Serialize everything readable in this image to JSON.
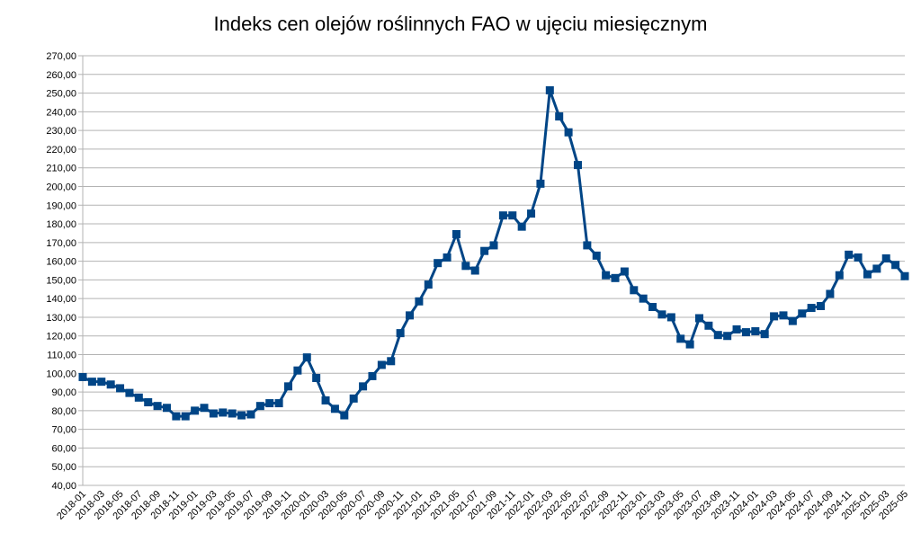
{
  "chart_data": {
    "type": "line",
    "title": "Indeks cen olejów roślinnych FAO w ujęciu miesięcznym",
    "categories": [
      "2018-01",
      null,
      "2018-03",
      null,
      "2018-05",
      null,
      "2018-07",
      null,
      "2018-09",
      null,
      "2018-11",
      null,
      "2019-01",
      null,
      "2019-03",
      null,
      "2019-05",
      null,
      "2019-07",
      null,
      "2019-09",
      null,
      "2019-11",
      null,
      "2020-01",
      null,
      "2020-03",
      null,
      "2020-05",
      null,
      "2020-07",
      null,
      "2020-09",
      null,
      "2020-11",
      null,
      "2021-01",
      null,
      "2021-03",
      null,
      "2021-05",
      null,
      "2021-07",
      null,
      "2021-09",
      null,
      "2021-11",
      null,
      "2022-01",
      null,
      "2022-03",
      null,
      "2022-05",
      null,
      "2022-07",
      null,
      "2022-09",
      null,
      "2022-11",
      null,
      "2023-01",
      null,
      "2023-03",
      null,
      "2023-05",
      null,
      "2023-07",
      null,
      "2023-09",
      null,
      "2023-11",
      null,
      "2024-01",
      null,
      "2024-03",
      null,
      "2024-05",
      null,
      "2024-07",
      null,
      "2024-09",
      null,
      "2024-11",
      null,
      "2025-01",
      null,
      "2025-03",
      null,
      "2025-05"
    ],
    "values": [
      98,
      95.5,
      95.5,
      94,
      92,
      89.5,
      87,
      84.5,
      82.5,
      81.5,
      77,
      77,
      80,
      81.5,
      78.5,
      79,
      78.5,
      77.5,
      78,
      82.5,
      84,
      84,
      93,
      101.5,
      108.5,
      97.5,
      85.5,
      81,
      77.5,
      86.5,
      93,
      98.5,
      104.5,
      106.5,
      121.5,
      131,
      138.5,
      147.5,
      159,
      162,
      174.5,
      157.5,
      155,
      165.5,
      168.5,
      184.5,
      184.5,
      178.5,
      185.5,
      201.5,
      251.5,
      237.5,
      229,
      211.5,
      168.5,
      163,
      152.5,
      151,
      154.5,
      144.5,
      140,
      135.5,
      131.5,
      130,
      118.5,
      115.5,
      129.5,
      125.5,
      120.5,
      120,
      123.5,
      122,
      122.5,
      121,
      130.5,
      131,
      128,
      132,
      135,
      136,
      142.5,
      152.5,
      163.5,
      162,
      153,
      156,
      161.5,
      158,
      152
    ],
    "color": "#004586",
    "ylim": [
      40,
      270
    ],
    "yticks": [
      {
        "value": 40,
        "label": "40,00"
      },
      {
        "value": 50,
        "label": "50,00"
      },
      {
        "value": 60,
        "label": "60,00"
      },
      {
        "value": 70,
        "label": "70,00"
      },
      {
        "value": 80,
        "label": "80,00"
      },
      {
        "value": 90,
        "label": "90,00"
      },
      {
        "value": 100,
        "label": "100,00"
      },
      {
        "value": 110,
        "label": "110,00"
      },
      {
        "value": 120,
        "label": "120,00"
      },
      {
        "value": 130,
        "label": "130,00"
      },
      {
        "value": 140,
        "label": "140,00"
      },
      {
        "value": 150,
        "label": "150,00"
      },
      {
        "value": 160,
        "label": "160,00"
      },
      {
        "value": 170,
        "label": "170,00"
      },
      {
        "value": 180,
        "label": "180,00"
      },
      {
        "value": 190,
        "label": "190,00"
      },
      {
        "value": 200,
        "label": "200,00"
      },
      {
        "value": 210,
        "label": "210,00"
      },
      {
        "value": 220,
        "label": "220,00"
      },
      {
        "value": 230,
        "label": "230,00"
      },
      {
        "value": 240,
        "label": "240,00"
      },
      {
        "value": 250,
        "label": "250,00"
      },
      {
        "value": 260,
        "label": "260,00"
      },
      {
        "value": 270,
        "label": "270,00"
      }
    ],
    "grid": true
  }
}
